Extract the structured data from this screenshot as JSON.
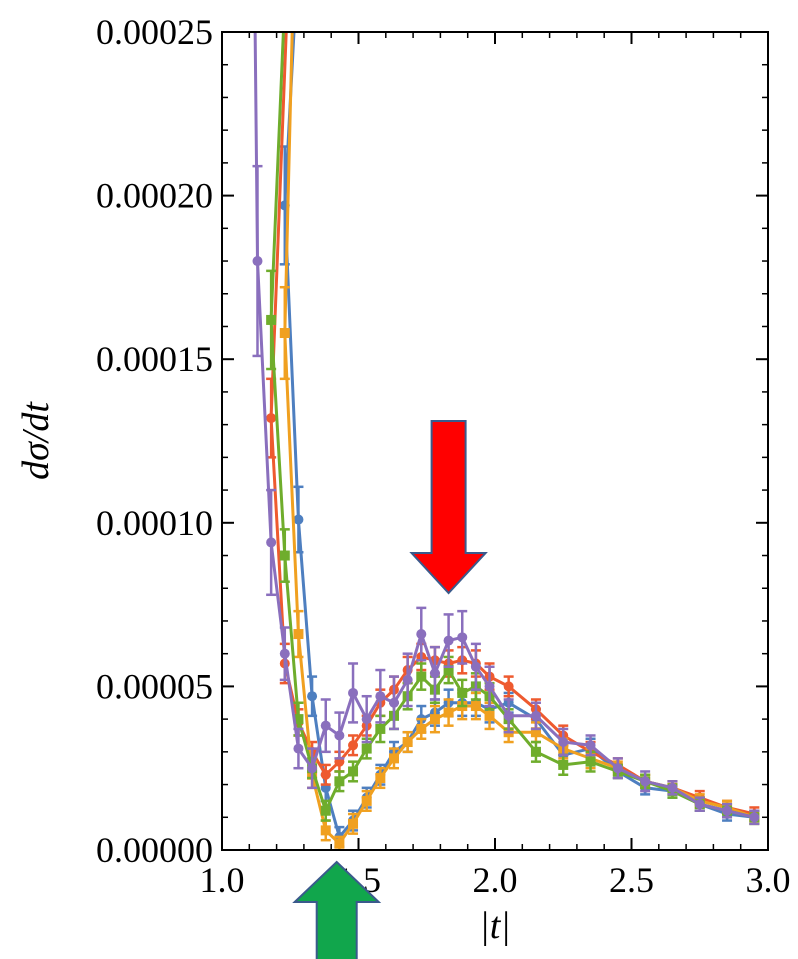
{
  "chart_data": {
    "type": "line",
    "title": "",
    "xlabel": "|t|",
    "ylabel": "dσ/dt",
    "xlim": [
      1.0,
      3.0
    ],
    "ylim": [
      0,
      0.00025
    ],
    "x_ticks": [
      "1.0",
      "1.5",
      "2.0",
      "2.5",
      "3.0"
    ],
    "y_ticks": [
      "0.00000",
      "0.00005",
      "0.00010",
      "0.00015",
      "0.00020",
      "0.00025"
    ],
    "grid": false,
    "legend": "none",
    "error_bars": true,
    "series": [
      {
        "color": "#4e7fc0",
        "x": [
          1.23,
          1.28,
          1.33,
          1.38,
          1.43,
          1.48,
          1.53,
          1.58,
          1.63,
          1.68,
          1.73,
          1.78,
          1.83,
          1.88,
          1.93,
          1.98,
          2.05,
          2.15,
          2.25,
          2.35,
          2.45,
          2.55,
          2.65,
          2.75,
          2.85,
          2.95
        ],
        "y": [
          0.000197,
          0.000101,
          4.7e-05,
          1.9e-05,
          4e-06,
          9e-06,
          1.6e-05,
          2.3e-05,
          3e-05,
          3.3e-05,
          4e-05,
          4.2e-05,
          4.5e-05,
          4.5e-05,
          4.5e-05,
          4.3e-05,
          4.5e-05,
          4e-05,
          2.9e-05,
          3.1e-05,
          2.4e-05,
          1.9e-05,
          1.8e-05,
          1.4e-05,
          1.1e-05,
          1e-05
        ],
        "err": [
          1.8e-05,
          1e-05,
          6e-06,
          4e-06,
          3e-06,
          3e-06,
          3e-06,
          3e-06,
          3e-06,
          3e-06,
          4e-06,
          4e-06,
          4e-06,
          4e-06,
          4e-06,
          4e-06,
          3e-06,
          3e-06,
          3e-06,
          3e-06,
          2e-06,
          2e-06,
          2e-06,
          2e-06,
          2e-06,
          2e-06
        ]
      },
      {
        "color": "#ee5a2f",
        "x": [
          1.18,
          1.23,
          1.28,
          1.33,
          1.38,
          1.43,
          1.48,
          1.53,
          1.58,
          1.63,
          1.68,
          1.73,
          1.78,
          1.83,
          1.88,
          1.93,
          1.98,
          2.05,
          2.15,
          2.25,
          2.35,
          2.45,
          2.55,
          2.65,
          2.75,
          2.85,
          2.95
        ],
        "y": [
          0.000132,
          5.7e-05,
          3.9e-05,
          3e-05,
          2.3e-05,
          2.7e-05,
          3.2e-05,
          3.8e-05,
          4.5e-05,
          4.9e-05,
          5.5e-05,
          5.9e-05,
          5.8e-05,
          5.7e-05,
          5.8e-05,
          5.7e-05,
          5.3e-05,
          5e-05,
          4.3e-05,
          3.5e-05,
          3e-05,
          2.6e-05,
          2.1e-05,
          1.9e-05,
          1.6e-05,
          1.3e-05,
          1.1e-05
        ],
        "err": [
          1.2e-05,
          6e-06,
          4e-06,
          3e-06,
          3e-06,
          3e-06,
          3e-06,
          3e-06,
          4e-06,
          4e-06,
          4e-06,
          4e-06,
          4e-06,
          4e-06,
          4e-06,
          4e-06,
          4e-06,
          3e-06,
          3e-06,
          3e-06,
          3e-06,
          2e-06,
          2e-06,
          2e-06,
          2e-06,
          2e-06,
          2e-06
        ]
      },
      {
        "color": "#f0a020",
        "x": [
          1.23,
          1.28,
          1.33,
          1.38,
          1.43,
          1.48,
          1.53,
          1.58,
          1.63,
          1.68,
          1.73,
          1.78,
          1.83,
          1.88,
          1.93,
          1.98,
          2.05,
          2.15,
          2.25,
          2.35,
          2.45,
          2.55,
          2.65,
          2.75,
          2.85,
          2.95
        ],
        "y": [
          0.000158,
          6.6e-05,
          2.3e-05,
          6e-06,
          2e-06,
          8e-06,
          1.5e-05,
          2.2e-05,
          2.8e-05,
          3.3e-05,
          3.7e-05,
          4e-05,
          4.2e-05,
          4.4e-05,
          4.4e-05,
          4.1e-05,
          3.6e-05,
          3.6e-05,
          3.1e-05,
          2.8e-05,
          2.5e-05,
          2.1e-05,
          1.9e-05,
          1.5e-05,
          1.3e-05,
          1e-05
        ],
        "err": [
          1.4e-05,
          7e-06,
          4e-06,
          3e-06,
          2e-06,
          3e-06,
          3e-06,
          3e-06,
          3e-06,
          3e-06,
          3e-06,
          4e-06,
          4e-06,
          4e-06,
          4e-06,
          4e-06,
          3e-06,
          3e-06,
          3e-06,
          3e-06,
          2e-06,
          2e-06,
          2e-06,
          2e-06,
          2e-06,
          2e-06
        ]
      },
      {
        "color": "#6fad2c",
        "x": [
          1.18,
          1.23,
          1.28,
          1.33,
          1.38,
          1.43,
          1.48,
          1.53,
          1.58,
          1.63,
          1.68,
          1.73,
          1.78,
          1.83,
          1.88,
          1.93,
          1.98,
          2.05,
          2.15,
          2.25,
          2.35,
          2.45,
          2.55,
          2.65,
          2.75,
          2.85,
          2.95
        ],
        "y": [
          0.000162,
          9e-05,
          4e-05,
          2.5e-05,
          1.2e-05,
          2.1e-05,
          2.4e-05,
          3.1e-05,
          3.7e-05,
          4.1e-05,
          4.7e-05,
          5.3e-05,
          4.9e-05,
          5.5e-05,
          4.8e-05,
          5e-05,
          4.7e-05,
          4e-05,
          3e-05,
          2.6e-05,
          2.7e-05,
          2.4e-05,
          2.1e-05,
          1.8e-05,
          1.4e-05,
          1.2e-05,
          1e-05
        ],
        "err": [
          1.5e-05,
          8e-06,
          5e-06,
          3e-06,
          3e-06,
          3e-06,
          3e-06,
          3e-06,
          4e-06,
          4e-06,
          4e-06,
          4e-06,
          4e-06,
          4e-06,
          4e-06,
          4e-06,
          4e-06,
          3e-06,
          3e-06,
          3e-06,
          3e-06,
          2e-06,
          2e-06,
          2e-06,
          2e-06,
          2e-06,
          2e-06
        ]
      },
      {
        "color": "#8a6fbd",
        "x": [
          1.13,
          1.18,
          1.23,
          1.28,
          1.33,
          1.38,
          1.43,
          1.48,
          1.53,
          1.58,
          1.63,
          1.68,
          1.73,
          1.78,
          1.83,
          1.88,
          1.93,
          1.98,
          2.05,
          2.15,
          2.25,
          2.35,
          2.45,
          2.55,
          2.65,
          2.75,
          2.85,
          2.95
        ],
        "y": [
          0.00018,
          9.4e-05,
          6e-05,
          3.1e-05,
          2.5e-05,
          3.8e-05,
          3.5e-05,
          4.8e-05,
          4e-05,
          4.7e-05,
          4.5e-05,
          5.2e-05,
          6.6e-05,
          5.4e-05,
          6.4e-05,
          6.5e-05,
          5.6e-05,
          5e-05,
          4.1e-05,
          4.1e-05,
          3.3e-05,
          3.2e-05,
          2.5e-05,
          2.1e-05,
          1.9e-05,
          1.4e-05,
          1.2e-05,
          1e-05
        ],
        "err": [
          2.9e-05,
          1.6e-05,
          8e-06,
          6e-06,
          6e-06,
          8e-06,
          7e-06,
          9e-06,
          7e-06,
          8e-06,
          8e-06,
          8e-06,
          8e-06,
          8e-06,
          8e-06,
          8e-06,
          7e-06,
          6e-06,
          5e-06,
          4e-06,
          4e-06,
          3e-06,
          3e-06,
          3e-06,
          2e-06,
          2e-06,
          2e-06,
          2e-06
        ]
      }
    ],
    "annotations": [
      {
        "type": "arrow",
        "direction": "down",
        "color": "#ff0000",
        "x": 1.83
      },
      {
        "type": "arrow",
        "direction": "up",
        "color": "#11a64c",
        "x": 1.42
      }
    ]
  }
}
